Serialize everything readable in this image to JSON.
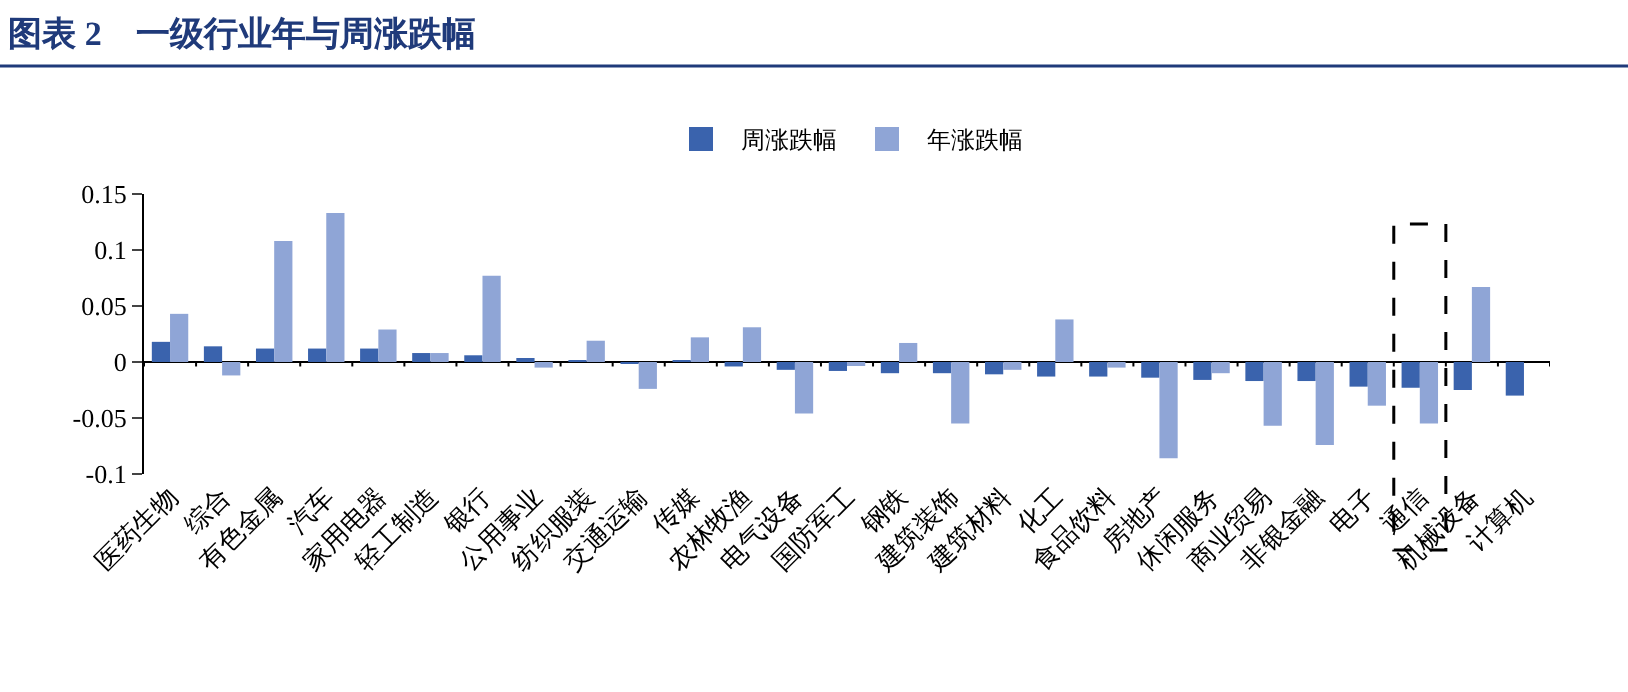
{
  "chart_data": {
    "type": "bar",
    "title": "图表 2　一级行业年与周涨跌幅",
    "categories": [
      "医药生物",
      "综合",
      "有色金属",
      "汽车",
      "家用电器",
      "轻工制造",
      "银行",
      "公用事业",
      "纺织服装",
      "交通运输",
      "传媒",
      "农林牧渔",
      "电气设备",
      "国防军工",
      "钢铁",
      "建筑装饰",
      "建筑材料",
      "化工",
      "食品饮料",
      "房地产",
      "休闲服务",
      "商业贸易",
      "非银金融",
      "电子",
      "通信",
      "机械设备",
      "计算机"
    ],
    "series": [
      {
        "name": "周涨跌幅",
        "color": "#3a63ad",
        "values": [
          0.018,
          0.014,
          0.012,
          0.012,
          0.012,
          0.008,
          0.006,
          0.002,
          0.001,
          -0.001,
          0.001,
          -0.004,
          -0.007,
          -0.008,
          -0.01,
          -0.01,
          -0.011,
          -0.013,
          -0.013,
          -0.014,
          -0.016,
          -0.017,
          -0.017,
          -0.022,
          -0.023,
          -0.025,
          -0.03
        ]
      },
      {
        "name": "年涨跌幅",
        "color": "#8fa5d6",
        "values": [
          0.043,
          -0.012,
          0.108,
          0.133,
          0.029,
          0.008,
          0.077,
          -0.005,
          0.019,
          -0.024,
          0.022,
          0.031,
          -0.046,
          -0.002,
          0.017,
          -0.055,
          -0.007,
          0.038,
          -0.005,
          -0.086,
          -0.01,
          -0.057,
          -0.074,
          -0.039,
          -0.055,
          0.067,
          null
        ]
      }
    ],
    "ylim": [
      -0.1,
      0.15
    ],
    "yticks": [
      -0.1,
      -0.05,
      0,
      0.05,
      0.1,
      0.15
    ],
    "legend": "top"
  }
}
